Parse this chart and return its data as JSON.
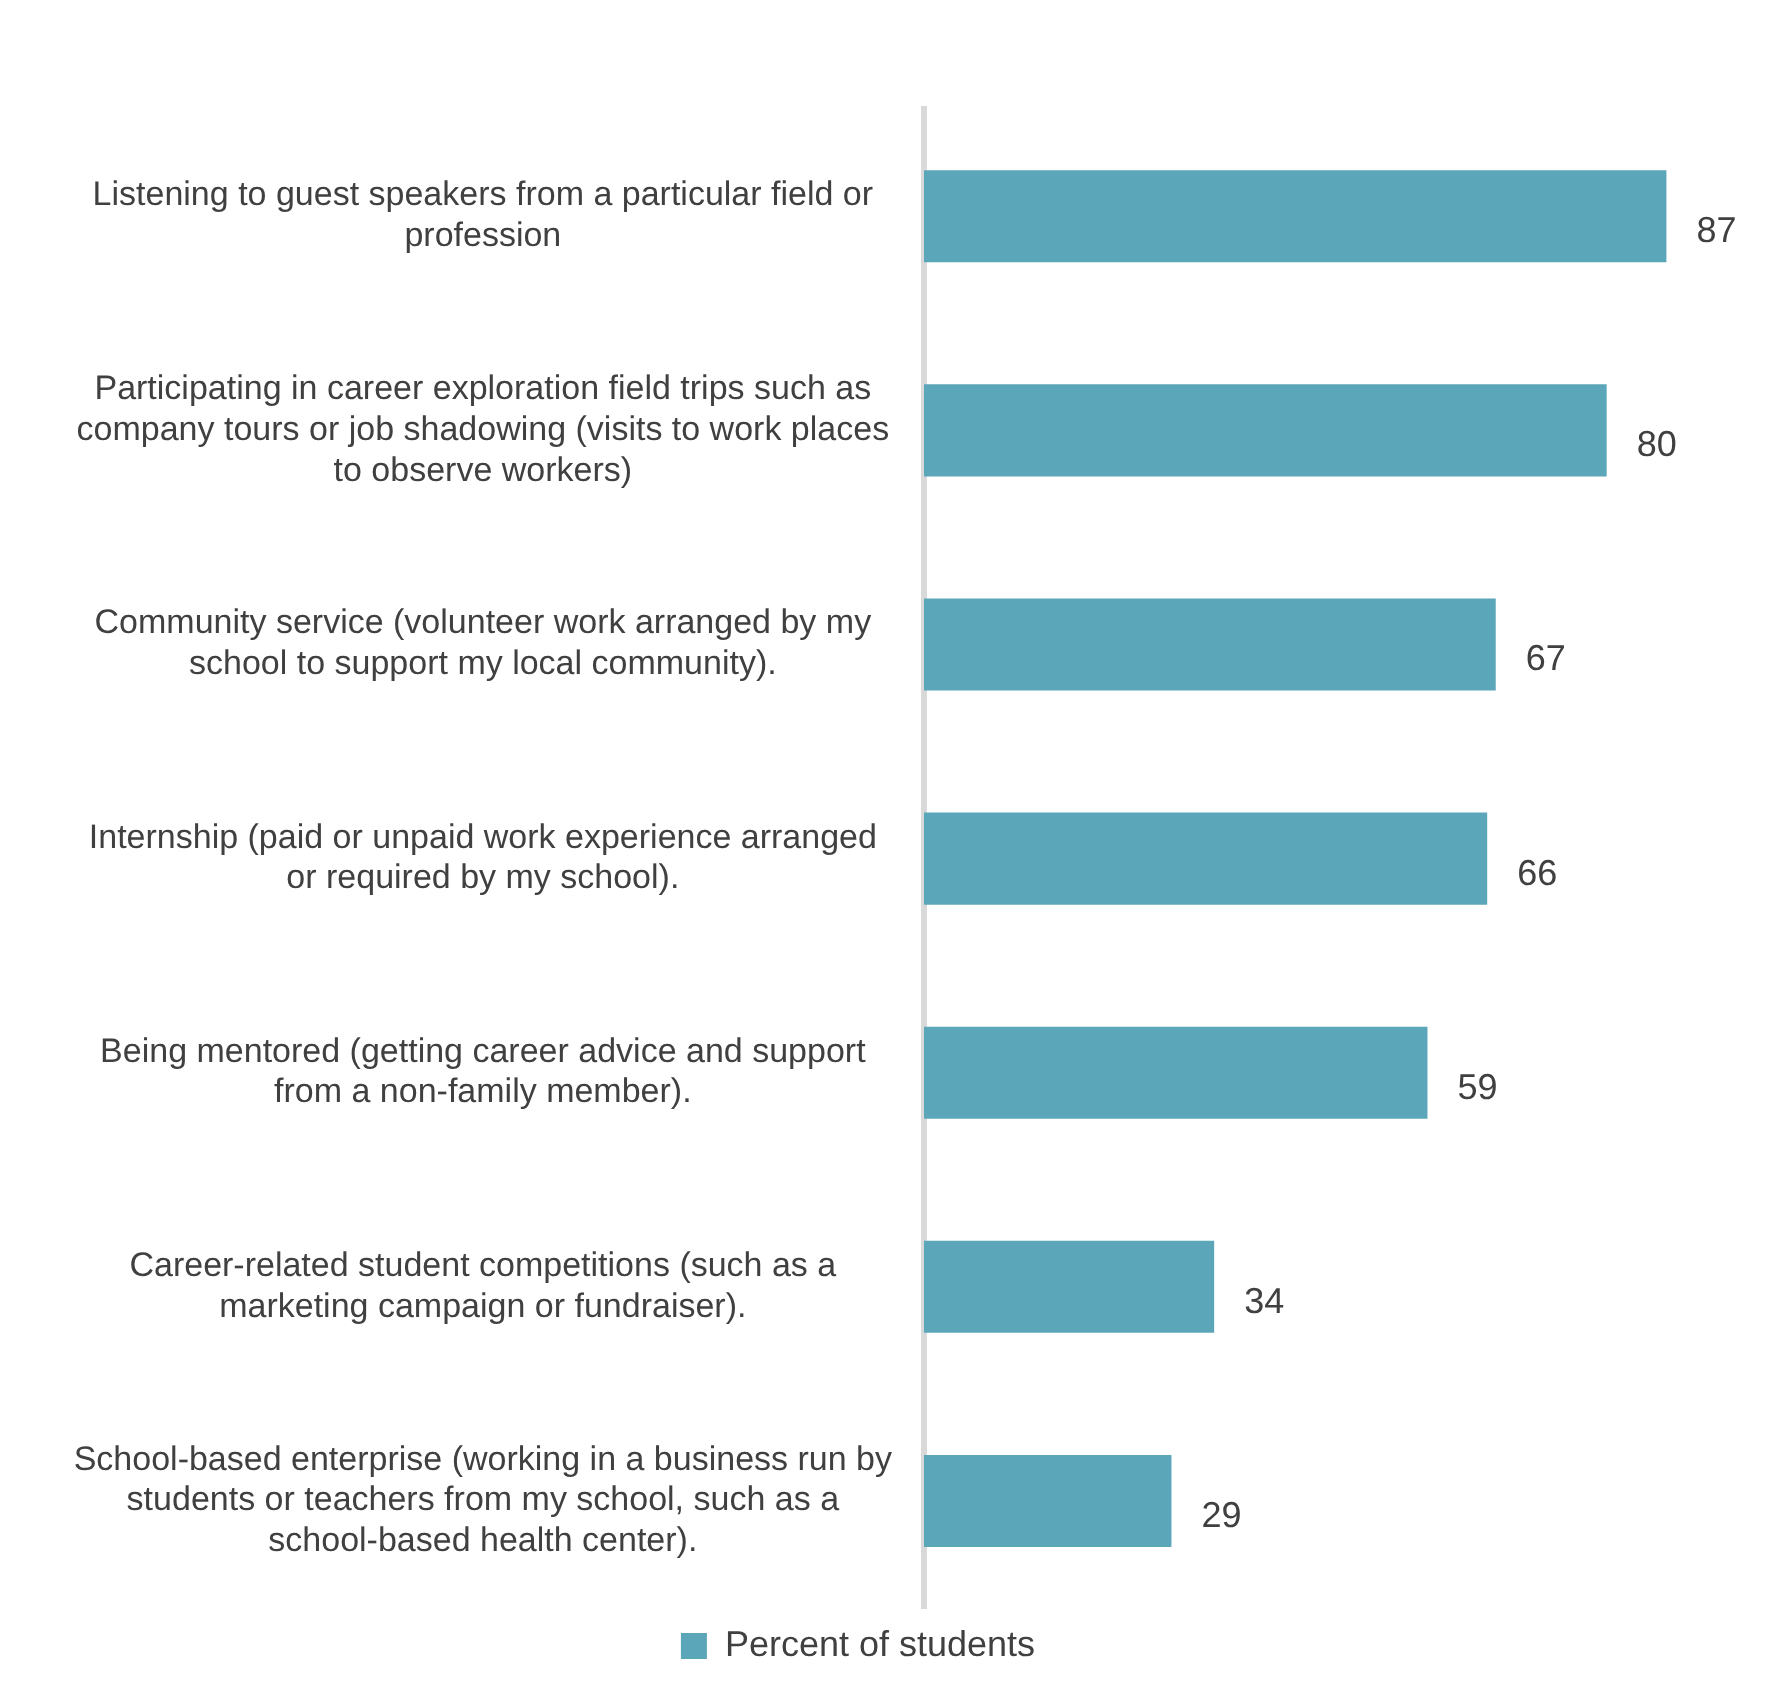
{
  "chart_data": {
    "type": "bar",
    "orientation": "horizontal",
    "categories": [
      "Listening to guest speakers from a particular field or profession",
      "Participating in career exploration field trips such as company tours or job shadowing (visits to work places to observe workers)",
      "Community service (volunteer work arranged by my school to support my local community).",
      "Internship (paid or unpaid work experience arranged or required by my school).",
      "Being mentored (getting career advice and support from a non-family member).",
      "Career-related student competitions (such as a marketing campaign or fundraiser).",
      "School-based enterprise (working in a business run by students or teachers from my school, such as a school-based health center)."
    ],
    "series": [
      {
        "name": "Percent of students",
        "color": "#5ba6b9",
        "values": [
          87,
          80,
          67,
          66,
          59,
          34,
          29
        ]
      }
    ],
    "data_labels": true,
    "legend": "bottom",
    "tick_labels": "y"
  }
}
